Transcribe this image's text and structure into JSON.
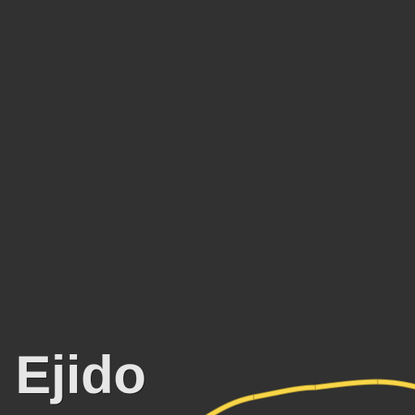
{
  "map": {
    "place_label": "Ejido",
    "background_color": "#313131",
    "label_color": "#e6e6e6",
    "road_color": "#f9d648",
    "road_casing_color": "#a8902f"
  }
}
